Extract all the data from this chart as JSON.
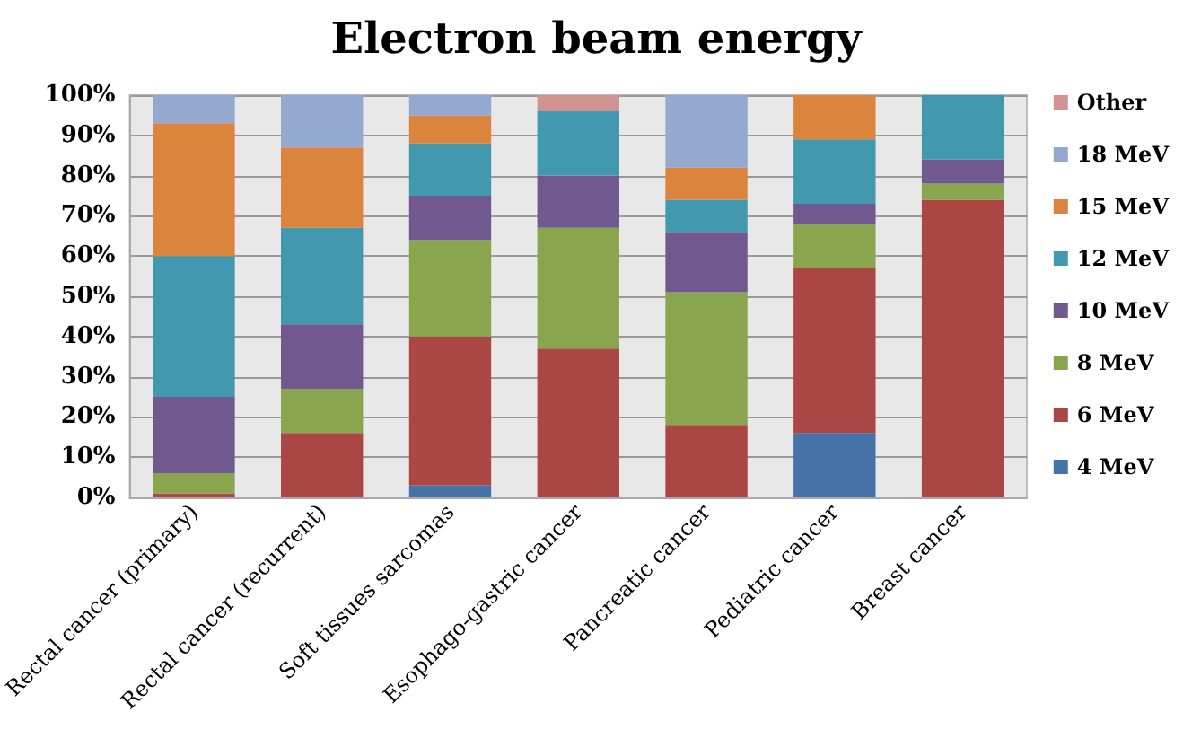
{
  "chart_data": {
    "type": "bar",
    "title": "Electron beam energy",
    "stacked": true,
    "categories": [
      "Rectal cancer (primary)",
      "Rectal cancer (recurrent)",
      "Soft tissues sarcomas",
      "Esophago-gastric cancer",
      "Pancreatic cancer",
      "Pediatric cancer",
      "Breast cancer"
    ],
    "series": [
      {
        "name": "4 MeV",
        "color": "#4572a7",
        "values": [
          0,
          0,
          3,
          0,
          0,
          16,
          0
        ]
      },
      {
        "name": "6 MeV",
        "color": "#aa4643",
        "values": [
          1,
          16,
          37,
          37,
          18,
          41,
          74
        ]
      },
      {
        "name": "8 MeV",
        "color": "#89a54e",
        "values": [
          5,
          11,
          24,
          30,
          33,
          11,
          4
        ]
      },
      {
        "name": "10 MeV",
        "color": "#71588f",
        "values": [
          19,
          16,
          11,
          13,
          15,
          5,
          6
        ]
      },
      {
        "name": "12 MeV",
        "color": "#4198af",
        "values": [
          35,
          24,
          13,
          16,
          8,
          16,
          16
        ]
      },
      {
        "name": "15 MeV",
        "color": "#db843d",
        "values": [
          33,
          20,
          7,
          0,
          8,
          11,
          0
        ]
      },
      {
        "name": "18 MeV",
        "color": "#93a9cf",
        "values": [
          7,
          13,
          5,
          0,
          18,
          0,
          0
        ]
      },
      {
        "name": "Other",
        "color": "#d19392",
        "values": [
          0,
          0,
          0,
          4,
          0,
          0,
          0
        ]
      }
    ],
    "ylim": [
      0,
      100
    ],
    "yticks": [
      {
        "value": 0,
        "label": "0%"
      },
      {
        "value": 10,
        "label": "10%"
      },
      {
        "value": 20,
        "label": "20%"
      },
      {
        "value": 30,
        "label": "30%"
      },
      {
        "value": 40,
        "label": "40%"
      },
      {
        "value": 50,
        "label": "50%"
      },
      {
        "value": 60,
        "label": "60%"
      },
      {
        "value": 70,
        "label": "70%"
      },
      {
        "value": 80,
        "label": "80%"
      },
      {
        "value": 90,
        "label": "90%"
      },
      {
        "value": 100,
        "label": "100%"
      }
    ],
    "grid": "y",
    "legend": "right"
  }
}
